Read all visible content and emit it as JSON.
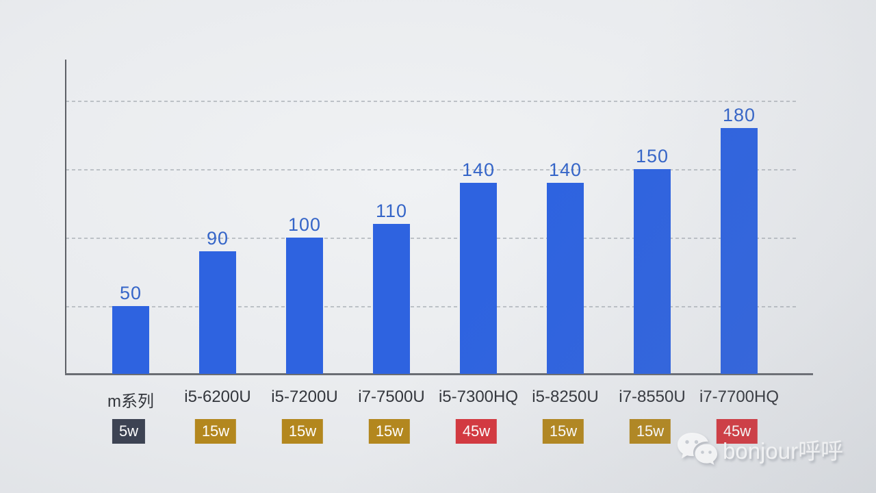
{
  "chart_data": {
    "type": "bar",
    "title": "",
    "xlabel": "",
    "ylabel": "",
    "categories": [
      "m系列",
      "i5-6200U",
      "i5-7200U",
      "i7-7500U",
      "i5-7300HQ",
      "i5-8250U",
      "i7-8550U",
      "i7-7700HQ"
    ],
    "values": [
      50,
      90,
      100,
      110,
      140,
      140,
      150,
      180
    ],
    "tdp_badges": [
      {
        "label": "5w",
        "color": "#3d4353"
      },
      {
        "label": "15w",
        "color": "#b3871e"
      },
      {
        "label": "15w",
        "color": "#b3871e"
      },
      {
        "label": "15w",
        "color": "#b3871e"
      },
      {
        "label": "45w",
        "color": "#d4383f"
      },
      {
        "label": "15w",
        "color": "#b3871e"
      },
      {
        "label": "15w",
        "color": "#b3871e"
      },
      {
        "label": "45w",
        "color": "#d4383f"
      }
    ],
    "ylim": [
      0,
      200
    ],
    "gridline_values": [
      50,
      100,
      150,
      200
    ],
    "grid": "horizontal-dashed",
    "legend": "none",
    "colors": {
      "bar": "#2e63e0",
      "value_label": "#3565c8",
      "category_label": "#33363c",
      "badge_text": "#ffffff",
      "gridline": "#b4b9bf",
      "axis": "#5d6066"
    }
  },
  "watermark": {
    "text": "bonjour呼呼",
    "icon": "wechat-icon"
  }
}
